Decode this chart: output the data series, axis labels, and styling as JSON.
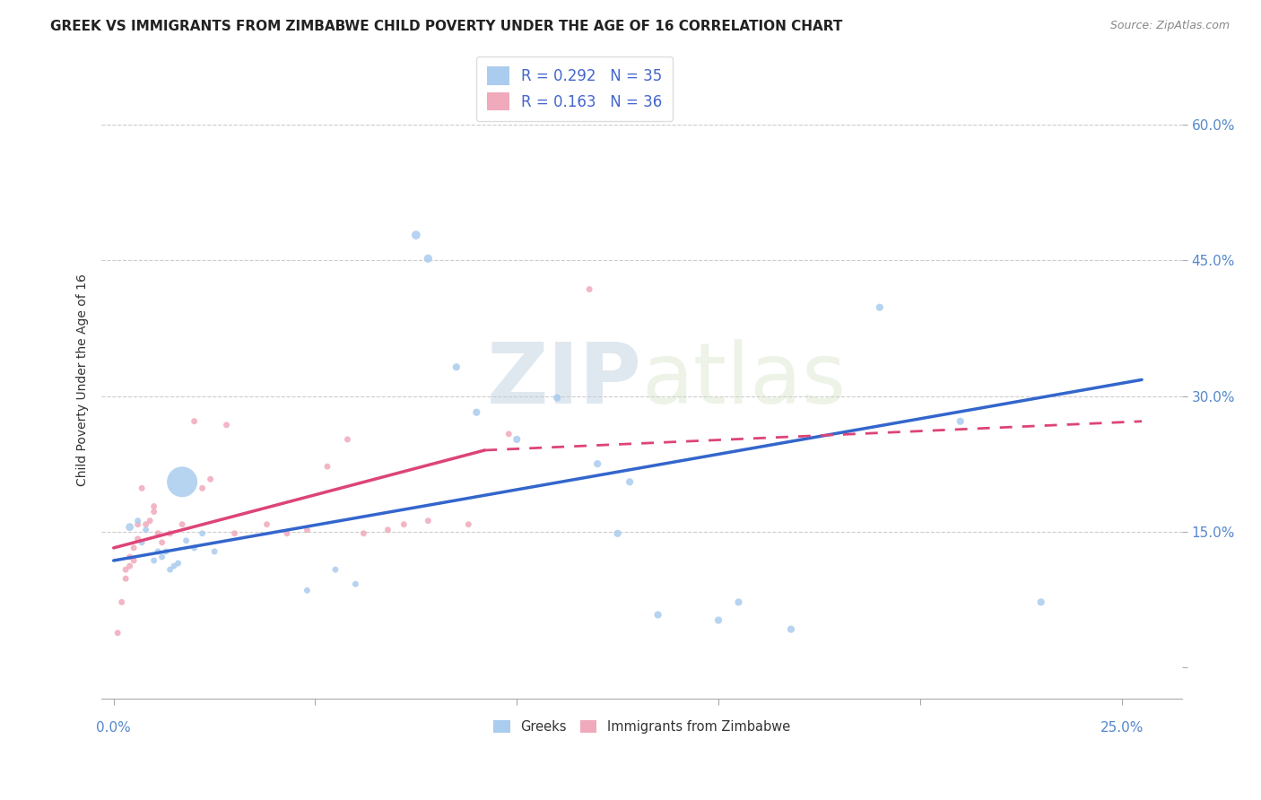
{
  "title": "GREEK VS IMMIGRANTS FROM ZIMBABWE CHILD POVERTY UNDER THE AGE OF 16 CORRELATION CHART",
  "source": "Source: ZipAtlas.com",
  "ylabel": "Child Poverty Under the Age of 16",
  "y_ticks": [
    0.0,
    0.15,
    0.3,
    0.45,
    0.6
  ],
  "y_tick_labels": [
    "",
    "15.0%",
    "30.0%",
    "45.0%",
    "60.0%"
  ],
  "xlim": [
    -0.003,
    0.265
  ],
  "ylim": [
    -0.035,
    0.67
  ],
  "greek_R": 0.292,
  "greek_N": 35,
  "zimb_R": 0.163,
  "zimb_N": 36,
  "greek_color": "#aaccee",
  "greek_line_color": "#3366cc",
  "zimb_color": "#f0aabb",
  "zimb_line_color": "#dd4477",
  "greek_scatter_x": [
    0.004,
    0.006,
    0.007,
    0.008,
    0.01,
    0.011,
    0.012,
    0.013,
    0.014,
    0.015,
    0.016,
    0.017,
    0.018,
    0.02,
    0.022,
    0.025,
    0.048,
    0.055,
    0.06,
    0.075,
    0.078,
    0.085,
    0.09,
    0.1,
    0.11,
    0.12,
    0.125,
    0.128,
    0.135,
    0.15,
    0.155,
    0.168,
    0.19,
    0.21,
    0.23
  ],
  "greek_scatter_y": [
    0.155,
    0.162,
    0.138,
    0.152,
    0.118,
    0.128,
    0.122,
    0.128,
    0.108,
    0.112,
    0.115,
    0.205,
    0.14,
    0.132,
    0.148,
    0.128,
    0.085,
    0.108,
    0.092,
    0.478,
    0.452,
    0.332,
    0.282,
    0.252,
    0.298,
    0.225,
    0.148,
    0.205,
    0.058,
    0.052,
    0.072,
    0.042,
    0.398,
    0.272,
    0.072
  ],
  "greek_scatter_size": [
    40,
    25,
    25,
    25,
    25,
    25,
    25,
    25,
    25,
    25,
    25,
    600,
    25,
    25,
    25,
    25,
    25,
    25,
    25,
    50,
    45,
    35,
    35,
    35,
    35,
    35,
    35,
    35,
    35,
    35,
    35,
    35,
    35,
    35,
    35
  ],
  "zimb_scatter_x": [
    0.001,
    0.002,
    0.003,
    0.003,
    0.004,
    0.004,
    0.005,
    0.005,
    0.006,
    0.006,
    0.007,
    0.008,
    0.009,
    0.01,
    0.01,
    0.011,
    0.012,
    0.014,
    0.017,
    0.02,
    0.022,
    0.024,
    0.028,
    0.03,
    0.038,
    0.043,
    0.048,
    0.053,
    0.058,
    0.062,
    0.068,
    0.072,
    0.078,
    0.088,
    0.098,
    0.118
  ],
  "zimb_scatter_y": [
    0.038,
    0.072,
    0.098,
    0.108,
    0.112,
    0.122,
    0.118,
    0.132,
    0.142,
    0.158,
    0.198,
    0.158,
    0.162,
    0.178,
    0.172,
    0.148,
    0.138,
    0.148,
    0.158,
    0.272,
    0.198,
    0.208,
    0.268,
    0.148,
    0.158,
    0.148,
    0.152,
    0.222,
    0.252,
    0.148,
    0.152,
    0.158,
    0.162,
    0.158,
    0.258,
    0.418
  ],
  "zimb_scatter_size": [
    25,
    25,
    25,
    25,
    25,
    25,
    25,
    25,
    25,
    25,
    25,
    25,
    25,
    25,
    25,
    25,
    25,
    25,
    25,
    25,
    25,
    25,
    25,
    25,
    25,
    25,
    25,
    25,
    25,
    25,
    25,
    25,
    25,
    25,
    25,
    25
  ],
  "greek_line_x": [
    0.0,
    0.255
  ],
  "greek_line_y": [
    0.118,
    0.318
  ],
  "zimb_solid_line_x": [
    0.0,
    0.092
  ],
  "zimb_solid_line_y": [
    0.132,
    0.24
  ],
  "zimb_dashed_line_x": [
    0.092,
    0.255
  ],
  "zimb_dashed_line_y": [
    0.24,
    0.272
  ],
  "grid_color": "#cccccc",
  "background_color": "#ffffff",
  "title_fontsize": 11,
  "axis_tick_color": "#5588cc",
  "axis_tick_fontsize": 11,
  "source_color": "#888888",
  "ylabel_color": "#333333",
  "legend_label_color": "#4466cc"
}
